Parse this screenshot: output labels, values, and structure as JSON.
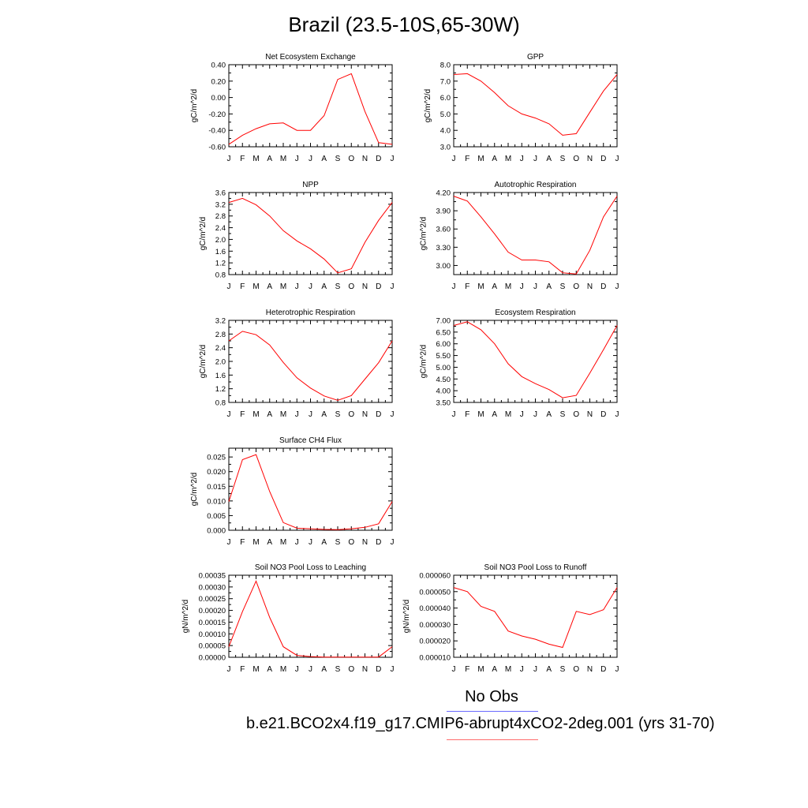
{
  "title": "Brazil (23.5-10S,65-30W)",
  "legend": {
    "obs_label": "No Obs",
    "obs_color": "#6b6bff",
    "case_label": "b.e21.BCO2x4.f19_g17.CMIP6-abrupt4xCO2-2deg.001 (yrs 31-70)",
    "case_color": "#ff0000"
  },
  "chart_data": [
    {
      "type": "line",
      "title": "Net Ecosystem Exchange",
      "ylabel": "gC/m^2/d",
      "categories": [
        "J",
        "F",
        "M",
        "A",
        "M",
        "J",
        "J",
        "A",
        "S",
        "O",
        "N",
        "D",
        "J"
      ],
      "ylim": [
        -0.6,
        0.4
      ],
      "yticks": [
        -0.6,
        -0.4,
        -0.2,
        0.0,
        0.2,
        0.4
      ],
      "yticklabels": [
        "-0.60",
        "-0.40",
        "-0.20",
        "0.00",
        "0.20",
        "0.40"
      ],
      "series": [
        {
          "color": "#ff0000",
          "values": [
            -0.57,
            -0.46,
            -0.38,
            -0.32,
            -0.31,
            -0.4,
            -0.4,
            -0.22,
            0.22,
            0.29,
            -0.17,
            -0.55,
            -0.57
          ]
        }
      ]
    },
    {
      "type": "line",
      "title": "GPP",
      "ylabel": "gC/m^2/d",
      "categories": [
        "J",
        "F",
        "M",
        "A",
        "M",
        "J",
        "J",
        "A",
        "S",
        "O",
        "N",
        "D",
        "J"
      ],
      "ylim": [
        3.0,
        8.0
      ],
      "yticks": [
        3.0,
        4.0,
        5.0,
        6.0,
        7.0,
        8.0
      ],
      "yticklabels": [
        "3.0",
        "4.0",
        "5.0",
        "6.0",
        "7.0",
        "8.0"
      ],
      "series": [
        {
          "color": "#ff0000",
          "values": [
            7.4,
            7.45,
            7.0,
            6.3,
            5.5,
            5.0,
            4.75,
            4.4,
            3.7,
            3.8,
            5.1,
            6.4,
            7.4
          ]
        }
      ]
    },
    {
      "type": "line",
      "title": "NPP",
      "ylabel": "gC/m^2/d",
      "categories": [
        "J",
        "F",
        "M",
        "A",
        "M",
        "J",
        "J",
        "A",
        "S",
        "O",
        "N",
        "D",
        "J"
      ],
      "ylim": [
        0.8,
        3.6
      ],
      "yticks": [
        0.8,
        1.2,
        1.6,
        2.0,
        2.4,
        2.8,
        3.2,
        3.6
      ],
      "yticklabels": [
        "0.8",
        "1.2",
        "1.6",
        "2.0",
        "2.4",
        "2.8",
        "3.2",
        "3.6"
      ],
      "series": [
        {
          "color": "#ff0000",
          "values": [
            3.26,
            3.4,
            3.18,
            2.8,
            2.3,
            1.95,
            1.68,
            1.33,
            0.86,
            1.0,
            1.9,
            2.65,
            3.26
          ]
        }
      ]
    },
    {
      "type": "line",
      "title": "Autotrophic Respiration",
      "ylabel": "gC/m^2/d",
      "categories": [
        "J",
        "F",
        "M",
        "A",
        "M",
        "J",
        "J",
        "A",
        "S",
        "O",
        "N",
        "D",
        "J"
      ],
      "ylim": [
        2.85,
        4.2
      ],
      "yticks": [
        3.0,
        3.3,
        3.6,
        3.9,
        4.2
      ],
      "yticklabels": [
        "3.00",
        "3.30",
        "3.60",
        "3.90",
        "4.20"
      ],
      "series": [
        {
          "color": "#ff0000",
          "values": [
            4.14,
            4.06,
            3.8,
            3.52,
            3.22,
            3.09,
            3.09,
            3.06,
            2.88,
            2.86,
            3.25,
            3.8,
            4.14
          ]
        }
      ]
    },
    {
      "type": "line",
      "title": "Heterotrophic Respiration",
      "ylabel": "gC/m^2/d",
      "categories": [
        "J",
        "F",
        "M",
        "A",
        "M",
        "J",
        "J",
        "A",
        "S",
        "O",
        "N",
        "D",
        "J"
      ],
      "ylim": [
        0.8,
        3.2
      ],
      "yticks": [
        0.8,
        1.2,
        1.6,
        2.0,
        2.4,
        2.8,
        3.2
      ],
      "yticklabels": [
        "0.8",
        "1.2",
        "1.6",
        "2.0",
        "2.4",
        "2.8",
        "3.2"
      ],
      "series": [
        {
          "color": "#ff0000",
          "values": [
            2.6,
            2.88,
            2.78,
            2.48,
            1.97,
            1.52,
            1.22,
            0.99,
            0.86,
            1.0,
            1.48,
            1.96,
            2.6
          ]
        }
      ]
    },
    {
      "type": "line",
      "title": "Ecosystem Respiration",
      "ylabel": "gC/m^2/d",
      "categories": [
        "J",
        "F",
        "M",
        "A",
        "M",
        "J",
        "J",
        "A",
        "S",
        "O",
        "N",
        "D",
        "J"
      ],
      "ylim": [
        3.5,
        7.0
      ],
      "yticks": [
        3.5,
        4.0,
        4.5,
        5.0,
        5.5,
        6.0,
        6.5,
        7.0
      ],
      "yticklabels": [
        "3.50",
        "4.00",
        "4.50",
        "5.00",
        "5.50",
        "6.00",
        "6.50",
        "7.00"
      ],
      "series": [
        {
          "color": "#ff0000",
          "values": [
            6.78,
            6.94,
            6.6,
            6.0,
            5.15,
            4.6,
            4.3,
            4.05,
            3.7,
            3.8,
            4.75,
            5.75,
            6.78
          ]
        }
      ]
    },
    {
      "type": "line",
      "title": "Surface CH4 Flux",
      "ylabel": "gC/m^2/d",
      "categories": [
        "J",
        "F",
        "M",
        "A",
        "M",
        "J",
        "J",
        "A",
        "S",
        "O",
        "N",
        "D",
        "J"
      ],
      "ylim": [
        0.0,
        0.028
      ],
      "yticks": [
        0.0,
        0.005,
        0.01,
        0.015,
        0.02,
        0.025
      ],
      "yticklabels": [
        "0.000",
        "0.005",
        "0.010",
        "0.015",
        "0.020",
        "0.025"
      ],
      "series": [
        {
          "color": "#ff0000",
          "values": [
            0.0098,
            0.0241,
            0.0258,
            0.0132,
            0.0026,
            0.0007,
            0.0005,
            0.0003,
            0.0002,
            0.0005,
            0.001,
            0.0022,
            0.0098
          ]
        }
      ]
    },
    {
      "type": "line",
      "title": "Soil NO3 Pool Loss to Leaching",
      "ylabel": "gN/m^2/d",
      "categories": [
        "J",
        "F",
        "M",
        "A",
        "M",
        "J",
        "J",
        "A",
        "S",
        "O",
        "N",
        "D",
        "J"
      ],
      "ylim": [
        0.0,
        0.00035
      ],
      "yticks": [
        0.0,
        5e-05,
        0.0001,
        0.00015,
        0.0002,
        0.00025,
        0.0003,
        0.00035
      ],
      "yticklabels": [
        "0.00000",
        "0.00005",
        "0.00010",
        "0.00015",
        "0.00020",
        "0.00025",
        "0.00030",
        "0.00035"
      ],
      "series": [
        {
          "color": "#ff0000",
          "values": [
            4.5e-05,
            0.000195,
            0.000325,
            0.00017,
            4.5e-05,
            8e-06,
            3e-06,
            1e-06,
            1e-06,
            1e-06,
            1e-06,
            1e-06,
            4.5e-05
          ]
        }
      ]
    },
    {
      "type": "line",
      "title": "Soil NO3 Pool Loss to Runoff",
      "ylabel": "gN/m^2/d",
      "categories": [
        "J",
        "F",
        "M",
        "A",
        "M",
        "J",
        "J",
        "A",
        "S",
        "O",
        "N",
        "D",
        "J"
      ],
      "ylim": [
        1e-05,
        6e-05
      ],
      "yticks": [
        1e-05,
        2e-05,
        3e-05,
        4e-05,
        5e-05,
        6e-05
      ],
      "yticklabels": [
        "0.000010",
        "0.000020",
        "0.000030",
        "0.000040",
        "0.000050",
        "0.000060"
      ],
      "series": [
        {
          "color": "#ff0000",
          "values": [
            5.25e-05,
            5e-05,
            4.1e-05,
            3.8e-05,
            2.6e-05,
            2.3e-05,
            2.1e-05,
            1.8e-05,
            1.6e-05,
            3.8e-05,
            3.6e-05,
            3.9e-05,
            5.25e-05
          ]
        }
      ]
    }
  ]
}
